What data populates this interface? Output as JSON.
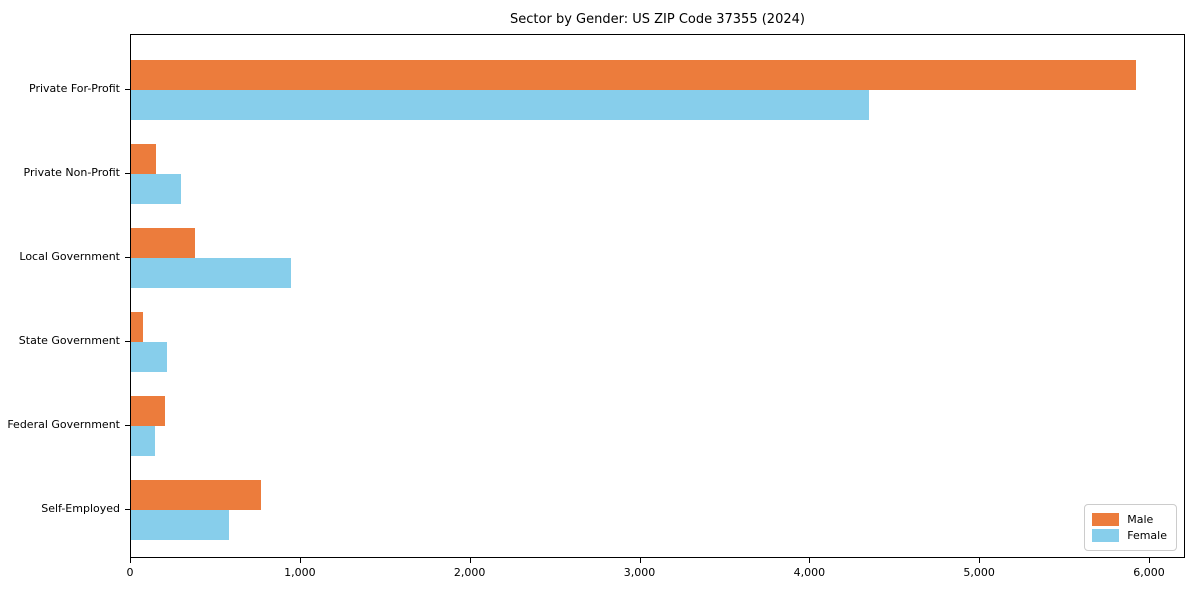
{
  "title": "Sector by Gender: US ZIP Code 37355 (2024)",
  "chart_data": {
    "type": "bar",
    "orientation": "horizontal",
    "title": "Sector by Gender: US ZIP Code 37355 (2024)",
    "categories": [
      "Private For-Profit",
      "Private Non-Profit",
      "Local Government",
      "State Government",
      "Federal Government",
      "Self-Employed"
    ],
    "series": [
      {
        "name": "Male",
        "color": "#ec7c3c",
        "values": [
          5917,
          147,
          377,
          71,
          200,
          765
        ]
      },
      {
        "name": "Female",
        "color": "#87ceeb",
        "values": [
          4345,
          294,
          942,
          212,
          141,
          577
        ]
      }
    ],
    "xlim": [
      0,
      6000
    ],
    "xticks": [
      0,
      1000,
      2000,
      3000,
      4000,
      5000,
      6000
    ],
    "xtick_labels": [
      "0",
      "1,000",
      "2,000",
      "3,000",
      "4,000",
      "5,000",
      "6,000"
    ],
    "xlabel": "",
    "ylabel": "",
    "grid": false,
    "legend_position": "lower right",
    "legend": {
      "items": [
        {
          "label": "Male",
          "color": "#ec7c3c"
        },
        {
          "label": "Female",
          "color": "#87ceeb"
        }
      ]
    }
  }
}
